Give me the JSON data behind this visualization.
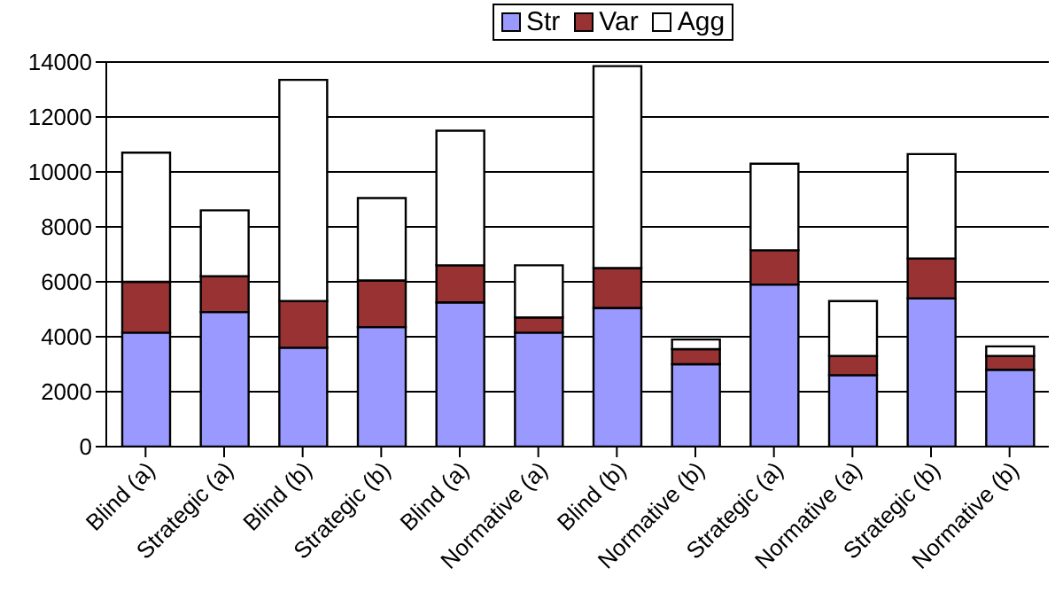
{
  "chart_data": {
    "type": "bar",
    "stacked": true,
    "categories": [
      "Blind (a)",
      "Strategic (a)",
      "Blind (b)",
      "Strategic (b)",
      "Blind (a)",
      "Normative (a)",
      "Blind (b)",
      "Normative (b)",
      "Strategic (a)",
      "Normative (a)",
      "Strategic (b)",
      "Normative (b)"
    ],
    "series": [
      {
        "name": "Str",
        "color": "#9999ff",
        "values": [
          4150,
          4900,
          3600,
          4350,
          5250,
          4150,
          5050,
          3000,
          5900,
          2600,
          5400,
          2800
        ]
      },
      {
        "name": "Var",
        "color": "#993333",
        "values": [
          1850,
          1300,
          1700,
          1700,
          1350,
          550,
          1450,
          550,
          1250,
          700,
          1450,
          500
        ]
      },
      {
        "name": "Agg",
        "color": "#ffffff",
        "values": [
          4700,
          2400,
          8050,
          3000,
          4900,
          1900,
          7350,
          350,
          3150,
          2000,
          3800,
          350
        ]
      }
    ],
    "ylim": [
      0,
      14000
    ],
    "yticks": [
      0,
      2000,
      4000,
      6000,
      8000,
      10000,
      12000,
      14000
    ],
    "grid": "y",
    "legend": "top"
  }
}
